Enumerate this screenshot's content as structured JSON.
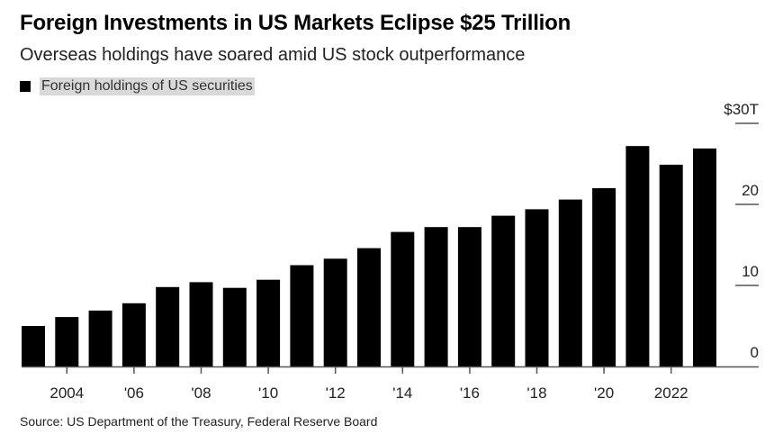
{
  "chart_data": {
    "type": "bar",
    "title": "Foreign Investments in US Markets Eclipse $25 Trillion",
    "subtitle": "Overseas holdings have soared amid US stock outperformance",
    "legend": [
      "Foreign holdings of US securities"
    ],
    "legend_placement": "top-left",
    "categories": [
      2003,
      2004,
      2005,
      2006,
      2007,
      2008,
      2009,
      2010,
      2011,
      2012,
      2013,
      2014,
      2015,
      2016,
      2017,
      2018,
      2019,
      2020,
      2021,
      2022,
      2023
    ],
    "series": [
      {
        "name": "Foreign holdings of US securities",
        "color": "#000000",
        "values": [
          5.0,
          6.1,
          6.9,
          7.8,
          9.8,
          10.4,
          9.7,
          10.7,
          12.5,
          13.3,
          14.6,
          16.6,
          17.2,
          17.2,
          18.6,
          19.4,
          20.6,
          22.0,
          27.2,
          24.9,
          26.9
        ]
      }
    ],
    "x_ticks": [
      {
        "year": 2004,
        "label": "2004"
      },
      {
        "year": 2006,
        "label": "'06"
      },
      {
        "year": 2008,
        "label": "'08"
      },
      {
        "year": 2010,
        "label": "'10"
      },
      {
        "year": 2012,
        "label": "'12"
      },
      {
        "year": 2014,
        "label": "'14"
      },
      {
        "year": 2016,
        "label": "'16"
      },
      {
        "year": 2018,
        "label": "'18"
      },
      {
        "year": 2020,
        "label": "'20"
      },
      {
        "year": 2022,
        "label": "2022"
      }
    ],
    "y_ticks": [
      {
        "value": 0,
        "label": "0"
      },
      {
        "value": 10,
        "label": "10"
      },
      {
        "value": 20,
        "label": "20"
      },
      {
        "value": 30,
        "label": "$30T"
      }
    ],
    "ylim": [
      0,
      30
    ],
    "y_axis_position": "right",
    "grid": false,
    "source": "Source: US Department of the Treasury, Federal Reserve Board"
  }
}
